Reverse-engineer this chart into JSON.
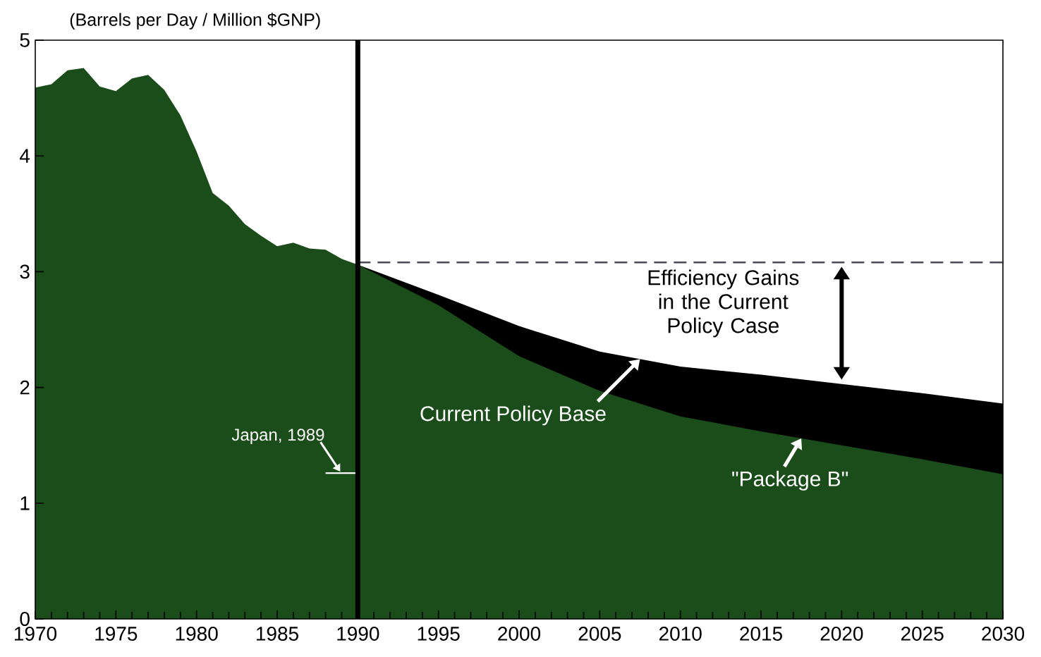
{
  "chart_data": {
    "type": "area",
    "ylabel": "(Barrels per Day / Million $GNP)",
    "xlim": [
      1970,
      2030
    ],
    "ylim": [
      0,
      5
    ],
    "xticks": [
      1970,
      1975,
      1980,
      1985,
      1990,
      1995,
      2000,
      2005,
      2010,
      2015,
      2020,
      2025,
      2030
    ],
    "yticks": [
      0,
      1,
      2,
      3,
      4,
      5
    ],
    "series": [
      {
        "name": "Current Policy Base",
        "color": "#000000",
        "x": [
          1990,
          1995,
          2000,
          2005,
          2010,
          2015,
          2020,
          2025,
          2030
        ],
        "values": [
          3.06,
          2.8,
          2.53,
          2.31,
          2.18,
          2.11,
          2.03,
          1.95,
          1.86
        ]
      },
      {
        "name": "\"Package B\"",
        "color": "#1b4d1b",
        "x": [
          1970,
          1971,
          1972,
          1973,
          1974,
          1975,
          1976,
          1977,
          1978,
          1979,
          1980,
          1981,
          1982,
          1983,
          1984,
          1985,
          1986,
          1987,
          1988,
          1989,
          1990,
          1995,
          2000,
          2005,
          2010,
          2015,
          2020,
          2025,
          2030
        ],
        "values": [
          4.59,
          4.62,
          4.74,
          4.76,
          4.6,
          4.56,
          4.67,
          4.7,
          4.57,
          4.35,
          4.04,
          3.68,
          3.57,
          3.41,
          3.31,
          3.22,
          3.25,
          3.2,
          3.19,
          3.11,
          3.06,
          2.71,
          2.27,
          1.97,
          1.75,
          1.62,
          1.5,
          1.38,
          1.25
        ]
      },
      {
        "type": "line",
        "line_style": "dashed",
        "color": "#4a4a5a",
        "x": [
          1990,
          2030
        ],
        "values": [
          3.08,
          3.08
        ]
      },
      {
        "type": "line",
        "color": "#ffffff",
        "x": [
          1988,
          1990
        ],
        "values": [
          1.26,
          1.26
        ]
      }
    ],
    "ref_lines": [
      {
        "axis": "x",
        "value": 1990,
        "color": "#000000"
      }
    ],
    "annotations": [
      {
        "text": "Japan, 1989",
        "x": 1989,
        "y": 1.26
      },
      {
        "text": "Efficiency Gains in the Current Policy Case",
        "x": 2020,
        "y": 3.08
      }
    ]
  }
}
